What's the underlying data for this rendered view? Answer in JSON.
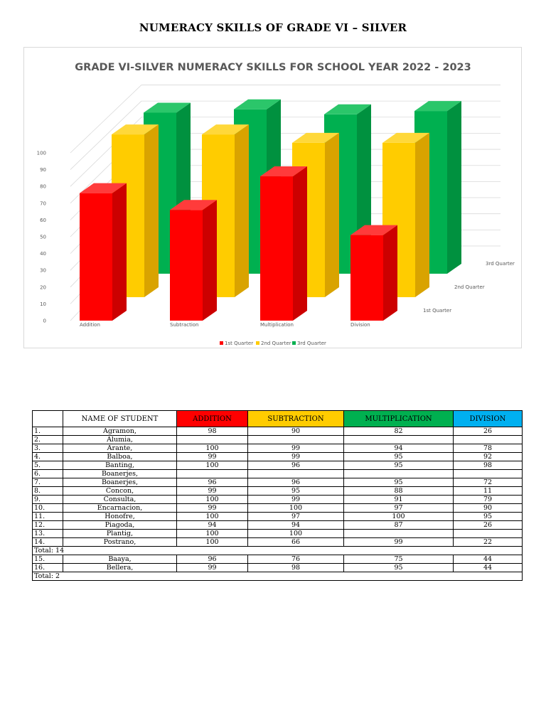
{
  "page_title": "NUMERACY SKILLS OF GRADE VI – SILVER",
  "colors": {
    "q1": "#ff0000",
    "q2": "#ffcc00",
    "q3": "#00b050",
    "division": "#00b0f0"
  },
  "chart_data": {
    "type": "bar",
    "title": "GRADE VI-SILVER NUMERACY SKILLS FOR SCHOOL YEAR 2022 - 2023",
    "categories": [
      "Addition",
      "Subtraction",
      "Multiplication",
      "Division"
    ],
    "series": [
      {
        "name": "1st Quarter",
        "values": [
          76,
          66,
          86,
          51
        ]
      },
      {
        "name": "2nd Quarter",
        "values": [
          97,
          97,
          92,
          92
        ]
      },
      {
        "name": "3rd Quarter",
        "values": [
          96,
          98,
          95,
          97
        ]
      }
    ],
    "ylim": [
      0,
      100
    ],
    "yticks": [
      "0",
      "10",
      "20",
      "30",
      "40",
      "50",
      "60",
      "70",
      "80",
      "90",
      "100"
    ],
    "legend_position": "bottom",
    "grid": true
  },
  "table": {
    "headers": {
      "name": "NAME OF STUDENT",
      "addition": "ADDITION",
      "subtraction": "SUBTRACTION",
      "multiplication": "MULTIPLICATION",
      "division": "DIVISION"
    },
    "rows": [
      {
        "type": "student",
        "num": "1.",
        "name": "Agramon,",
        "addition": "98",
        "subtraction": "90",
        "multiplication": "82",
        "division": "26"
      },
      {
        "type": "student",
        "num": "2.",
        "name": "Alumia,",
        "addition": "",
        "subtraction": "",
        "multiplication": "",
        "division": ""
      },
      {
        "type": "student",
        "num": "3.",
        "name": "Arante,",
        "addition": "100",
        "subtraction": "99",
        "multiplication": "94",
        "division": "78"
      },
      {
        "type": "student",
        "num": "4.",
        "name": "Balboa,",
        "addition": "99",
        "subtraction": "99",
        "multiplication": "95",
        "division": "92"
      },
      {
        "type": "student",
        "num": "5.",
        "name": "Banting,",
        "addition": "100",
        "subtraction": "96",
        "multiplication": "95",
        "division": "98"
      },
      {
        "type": "student",
        "num": "6.",
        "name": "Boanerjes,",
        "addition": "",
        "subtraction": "",
        "multiplication": "",
        "division": ""
      },
      {
        "type": "student",
        "num": "7.",
        "name": "Boanerjes,",
        "addition": "96",
        "subtraction": "96",
        "multiplication": "95",
        "division": "72"
      },
      {
        "type": "student",
        "num": "8.",
        "name": "Concon,",
        "addition": "99",
        "subtraction": "95",
        "multiplication": "88",
        "division": "11"
      },
      {
        "type": "student",
        "num": "9.",
        "name": "Consulta,",
        "addition": "100",
        "subtraction": "99",
        "multiplication": "91",
        "division": "79"
      },
      {
        "type": "student",
        "num": "10.",
        "name": "Encarnacion,",
        "addition": "99",
        "subtraction": "100",
        "multiplication": "97",
        "division": "90"
      },
      {
        "type": "student",
        "num": "11.",
        "name": "Honofre,",
        "addition": "100",
        "subtraction": "97",
        "multiplication": "100",
        "division": "95"
      },
      {
        "type": "student",
        "num": "12.",
        "name": "Piagoda,",
        "addition": "94",
        "subtraction": "94",
        "multiplication": "87",
        "division": "26"
      },
      {
        "type": "student",
        "num": "13.",
        "name": "Plantig,",
        "addition": "100",
        "subtraction": "100",
        "multiplication": "",
        "division": ""
      },
      {
        "type": "student",
        "num": "14.",
        "name": "Postrano,",
        "addition": "100",
        "subtraction": "66",
        "multiplication": "99",
        "division": "22"
      },
      {
        "type": "total",
        "label": "Total: 14"
      },
      {
        "type": "student",
        "num": "15.",
        "name": "Baaya,",
        "addition": "96",
        "subtraction": "76",
        "multiplication": "75",
        "division": "44"
      },
      {
        "type": "student",
        "num": "16.",
        "name": "Bellera,",
        "addition": "99",
        "subtraction": "98",
        "multiplication": "95",
        "division": "44"
      },
      {
        "type": "total",
        "label": "Total: 2"
      }
    ]
  }
}
